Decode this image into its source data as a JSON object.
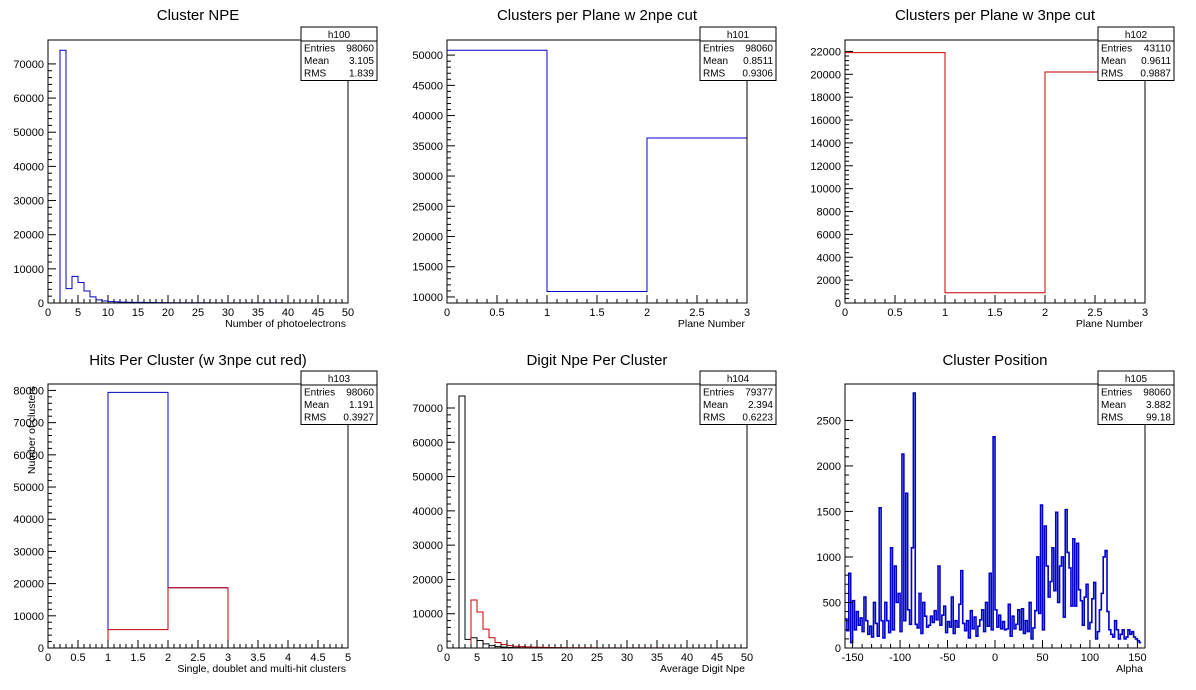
{
  "chart_data": [
    {
      "type": "bar",
      "histogram": true,
      "title": "Cluster NPE",
      "xlabel": "Number of photoelectrons",
      "ylabel": "",
      "xlim": [
        0,
        50
      ],
      "ylim": [
        0,
        77000
      ],
      "xticks": [
        0,
        5,
        10,
        15,
        20,
        25,
        30,
        35,
        40,
        45,
        50
      ],
      "yticks": [
        0,
        10000,
        20000,
        30000,
        40000,
        50000,
        60000,
        70000
      ],
      "stats": {
        "name": "h100",
        "rows": [
          [
            "Entries",
            "98060"
          ],
          [
            "Mean",
            "3.105"
          ],
          [
            "RMS",
            "1.839"
          ]
        ]
      },
      "series": [
        {
          "color": "#0000cc",
          "bin_width": 1,
          "x0": 0,
          "values": [
            0,
            0,
            74000,
            4200,
            7800,
            6000,
            3500,
            1800,
            900,
            600,
            420,
            330,
            260,
            220,
            190,
            170,
            150,
            130,
            110,
            100,
            90,
            80,
            75,
            70,
            65,
            60,
            55,
            50,
            45,
            40,
            38,
            35,
            33,
            30,
            28,
            26,
            24,
            22,
            20,
            18,
            17,
            16,
            15,
            14,
            13,
            12,
            11,
            10,
            9,
            8
          ]
        }
      ]
    },
    {
      "type": "bar",
      "histogram": true,
      "title": "Clusters per Plane w 2npe cut",
      "xlabel": "Plane Number",
      "ylabel": "",
      "xlim": [
        0,
        3
      ],
      "ylim": [
        9000,
        52500
      ],
      "xticks": [
        0,
        0.5,
        1,
        1.5,
        2,
        2.5,
        3
      ],
      "yticks": [
        10000,
        15000,
        20000,
        25000,
        30000,
        35000,
        40000,
        45000,
        50000
      ],
      "stats": {
        "name": "h101",
        "rows": [
          [
            "Entries",
            "98060"
          ],
          [
            "Mean",
            "0.8511"
          ],
          [
            "RMS",
            "0.9306"
          ]
        ]
      },
      "series": [
        {
          "color": "#0000cc",
          "bin_width": 1,
          "x0": 0,
          "values": [
            50800,
            10900,
            36300
          ]
        }
      ]
    },
    {
      "type": "bar",
      "histogram": true,
      "title": "Clusters per Plane w 3npe cut",
      "xlabel": "Plane Number",
      "ylabel": "",
      "xlim": [
        0,
        3
      ],
      "ylim": [
        0,
        23000
      ],
      "xticks": [
        0,
        0.5,
        1,
        1.5,
        2,
        2.5,
        3
      ],
      "yticks": [
        0,
        2000,
        4000,
        6000,
        8000,
        10000,
        12000,
        14000,
        16000,
        18000,
        20000,
        22000
      ],
      "stats": {
        "name": "h102",
        "rows": [
          [
            "Entries",
            "43110"
          ],
          [
            "Mean",
            "0.9611"
          ],
          [
            "RMS",
            "0.9887"
          ]
        ]
      },
      "series": [
        {
          "color": "#cc0000",
          "bin_width": 1,
          "x0": 0,
          "values": [
            21900,
            900,
            20200
          ]
        }
      ]
    },
    {
      "type": "bar",
      "histogram": true,
      "title": "Hits Per Cluster (w 3npe cut red)",
      "xlabel": "Single, doublet and multi-hit clusters",
      "ylabel": "Number of clusters",
      "xlim": [
        0,
        5
      ],
      "ylim": [
        0,
        82000
      ],
      "xticks": [
        0,
        0.5,
        1,
        1.5,
        2,
        2.5,
        3,
        3.5,
        4,
        4.5,
        5
      ],
      "yticks": [
        0,
        10000,
        20000,
        30000,
        40000,
        50000,
        60000,
        70000,
        80000
      ],
      "stats": {
        "name": "h103",
        "rows": [
          [
            "Entries",
            "98060"
          ],
          [
            "Mean",
            "1.191"
          ],
          [
            "RMS",
            "0.3927"
          ]
        ]
      },
      "series": [
        {
          "color": "#0000cc",
          "bin_width": 1,
          "x0": 0,
          "values": [
            0,
            79400,
            18700,
            0,
            0
          ]
        },
        {
          "color": "#cc0000",
          "bin_width": 1,
          "x0": 0,
          "values": [
            0,
            5700,
            18700,
            0,
            0
          ]
        }
      ]
    },
    {
      "type": "bar",
      "histogram": true,
      "title": "Digit Npe Per Cluster",
      "xlabel": "Average Digit Npe",
      "ylabel": "",
      "xlim": [
        0,
        50
      ],
      "ylim": [
        0,
        77000
      ],
      "xticks": [
        0,
        5,
        10,
        15,
        20,
        25,
        30,
        35,
        40,
        45,
        50
      ],
      "yticks": [
        0,
        10000,
        20000,
        30000,
        40000,
        50000,
        60000,
        70000
      ],
      "stats": {
        "name": "h104",
        "rows": [
          [
            "Entries",
            "79377"
          ],
          [
            "Mean",
            "2.394"
          ],
          [
            "RMS",
            "0.6223"
          ]
        ]
      },
      "series": [
        {
          "color": "#000000",
          "bin_width": 1,
          "x0": 0,
          "values": [
            0,
            0,
            73500,
            2500,
            3000,
            2200,
            1200,
            700,
            400,
            250,
            150,
            100,
            80,
            60,
            50,
            40,
            30,
            25,
            20,
            15,
            12,
            10,
            9,
            8,
            7,
            6,
            5,
            5,
            4,
            4,
            3,
            3,
            3,
            2,
            2,
            2,
            2,
            1,
            1,
            1,
            1,
            1,
            1,
            1,
            1,
            1,
            1,
            1,
            1,
            1
          ]
        },
        {
          "color": "#cc0000",
          "bin_width": 1,
          "x0": 0,
          "values": [
            0,
            0,
            0,
            0,
            14000,
            10500,
            5500,
            3000,
            1600,
            1000,
            700,
            500,
            400,
            320,
            260,
            210,
            180,
            150,
            120,
            100,
            90,
            80,
            70,
            60,
            55,
            50,
            45,
            40,
            36,
            32,
            30,
            28,
            26,
            24,
            22,
            20,
            18,
            16,
            15,
            14,
            13,
            12,
            11,
            10,
            9,
            8,
            7,
            6,
            5,
            4
          ]
        }
      ]
    },
    {
      "type": "bar",
      "histogram": true,
      "title": "Cluster Position",
      "xlabel": "Alpha",
      "ylabel": "",
      "xlim": [
        -158,
        158
      ],
      "ylim": [
        0,
        2900
      ],
      "xticks": [
        -150,
        -100,
        -50,
        0,
        50,
        100,
        150
      ],
      "yticks": [
        0,
        500,
        1000,
        1500,
        2000,
        2500
      ],
      "stats": {
        "name": "h105",
        "rows": [
          [
            "Entries",
            "98060"
          ],
          [
            "Mean",
            "3.882"
          ],
          [
            "RMS",
            "99.18"
          ]
        ]
      },
      "series": [
        {
          "color": "#0000cc",
          "bin_width": 2,
          "x0": -158,
          "values": [
            320,
            190,
            820,
            60,
            520,
            200,
            400,
            250,
            330,
            180,
            560,
            300,
            150,
            240,
            120,
            500,
            270,
            130,
            1540,
            300,
            110,
            500,
            300,
            170,
            1100,
            200,
            900,
            500,
            600,
            180,
            2130,
            300,
            1700,
            420,
            260,
            1100,
            2800,
            260,
            220,
            600,
            160,
            500,
            350,
            230,
            250,
            350,
            280,
            410,
            310,
            900,
            250,
            360,
            460,
            170,
            290,
            230,
            560,
            160,
            300,
            230,
            480,
            850,
            270,
            190,
            300,
            110,
            410,
            210,
            340,
            130,
            240,
            310,
            420,
            180,
            500,
            240,
            820,
            200,
            2320,
            420,
            230,
            360,
            210,
            290,
            200,
            210,
            480,
            130,
            350,
            210,
            260,
            420,
            200,
            430,
            160,
            300,
            180,
            500,
            100,
            220,
            410,
            1000,
            380,
            1570,
            200,
            1340,
            900,
            560,
            730,
            1100,
            630,
            1490,
            500,
            900,
            1000,
            340,
            1520,
            1050,
            880,
            460,
            1200,
            460,
            1150,
            640,
            520,
            250,
            560,
            700,
            210,
            280,
            540,
            720,
            100,
            180,
            420,
            600,
            1000,
            1070,
            400,
            200,
            150,
            120,
            300,
            200,
            100,
            150,
            200,
            100,
            120,
            200,
            150,
            180,
            120,
            100,
            80,
            60
          ]
        }
      ]
    }
  ]
}
